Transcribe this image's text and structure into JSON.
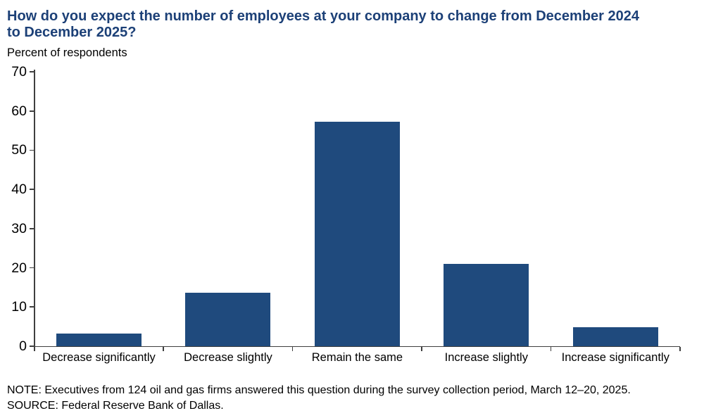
{
  "header": {
    "title_line1": "How do you expect the number of employees at your company to change from December 2024",
    "title_line2": "to December 2025?",
    "subtitle": "Percent of respondents"
  },
  "footer": {
    "note": "NOTE: Executives from 124 oil and gas firms answered this question during the survey collection period, March 12–20, 2025.",
    "source": "SOURCE: Federal Reserve Bank of Dallas."
  },
  "colors": {
    "bar": "#1F4A7D",
    "title": "#1C4077",
    "axis": "#3f3f3f",
    "text": "#000000"
  },
  "chart_data": {
    "type": "bar",
    "title": "How do you expect the number of employees at your company to change from December 2024 to December 2025?",
    "subtitle": "Percent of respondents",
    "categories": [
      "Decrease significantly",
      "Decrease slightly",
      "Remain the same",
      "Increase slightly",
      "Increase significantly"
    ],
    "values": [
      3.2,
      13.7,
      57.3,
      21.0,
      4.8
    ],
    "xlabel": "",
    "ylabel": "Percent of respondents",
    "ylim": [
      0,
      70
    ],
    "yticks": [
      0,
      10,
      20,
      30,
      40,
      50,
      60,
      70
    ],
    "grid": false,
    "legend": false,
    "bar_color": "#1F4A7D"
  }
}
